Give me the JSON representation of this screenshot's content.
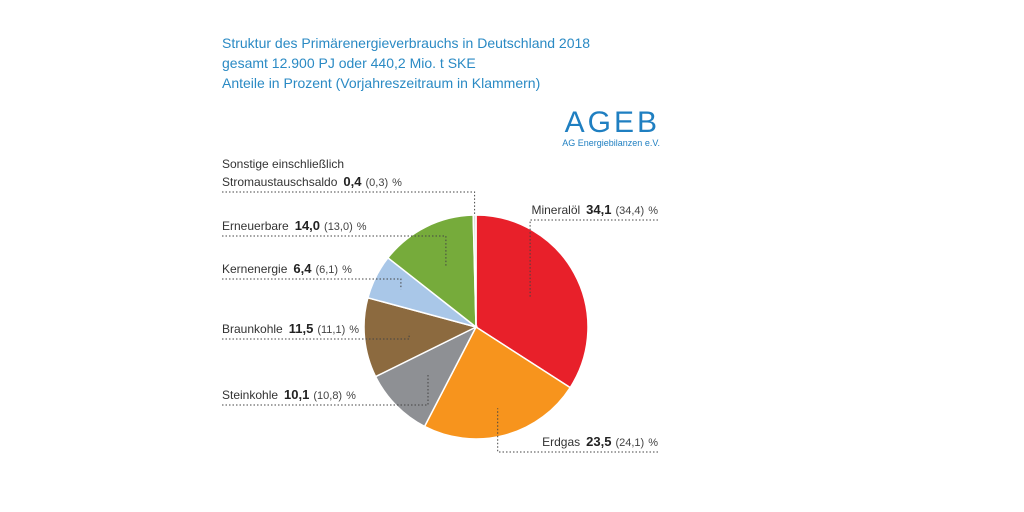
{
  "header": {
    "title_lines": [
      "Struktur des Primärenergieverbrauchs in Deutschland 2018",
      "gesamt 12.900 PJ oder 440,2 Mio. t SKE",
      "Anteile in Prozent (Vorjahreszeitraum in Klammern)"
    ]
  },
  "logo": {
    "name": "AGEB",
    "subtitle": "AG Energiebilanzen e.V."
  },
  "chart_data": {
    "type": "pie",
    "title": "Struktur des Primärenergieverbrauchs in Deutschland 2018",
    "subtitle": "gesamt 12.900 PJ oder 440,2 Mio. t SKE",
    "unit": "%",
    "slices": [
      {
        "label": "Mineralöl",
        "value": 34.1,
        "value_text": "34,1",
        "prev_text": "(34,4)",
        "color": "#e8202a"
      },
      {
        "label": "Erdgas",
        "value": 23.5,
        "value_text": "23,5",
        "prev_text": "(24,1)",
        "color": "#f7941d"
      },
      {
        "label": "Steinkohle",
        "value": 10.1,
        "value_text": "10,1",
        "prev_text": "(10,8)",
        "color": "#8e9094"
      },
      {
        "label": "Braunkohle",
        "value": 11.5,
        "value_text": "11,5",
        "prev_text": "(11,1)",
        "color": "#8c6a3f"
      },
      {
        "label": "Kernenergie",
        "value": 6.4,
        "value_text": "6,4",
        "prev_text": "(6,1)",
        "color": "#a9c7e8"
      },
      {
        "label": "Erneuerbare",
        "value": 14.0,
        "value_text": "14,0",
        "prev_text": "(13,0)",
        "color": "#76ab3b"
      },
      {
        "label_lines": [
          "Sonstige einschließlich",
          "Stromaustauschsaldo"
        ],
        "value": 0.4,
        "value_text": "0,4",
        "prev_text": "(0,3)",
        "color": "#d9d9d9"
      }
    ]
  }
}
